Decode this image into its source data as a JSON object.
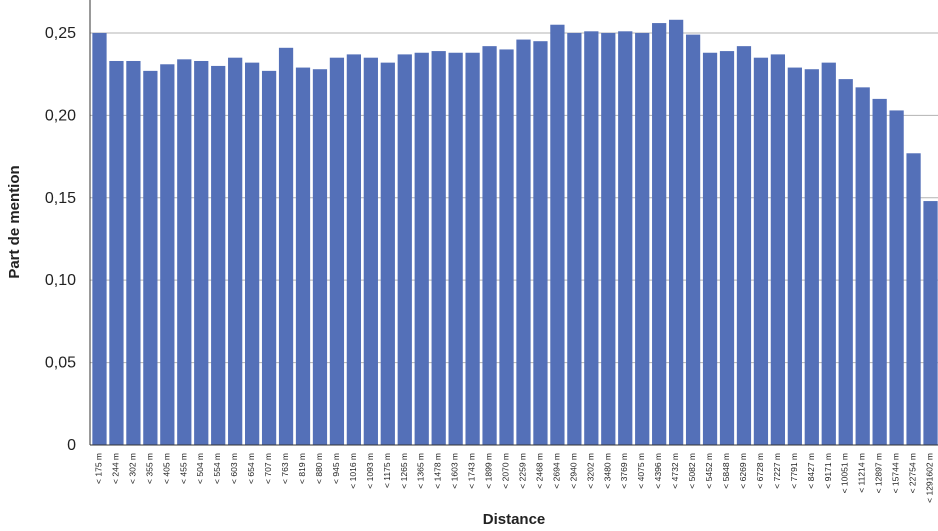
{
  "chart_data": {
    "type": "bar",
    "title": "",
    "xlabel": "Distance",
    "ylabel": "Part de mention",
    "ylim": [
      0,
      0.27
    ],
    "yticks": [
      0,
      0.05,
      0.1,
      0.15,
      0.2,
      0.25
    ],
    "ytick_labels": [
      "0",
      "0,05",
      "0,10",
      "0,15",
      "0,20",
      "0,25"
    ],
    "grid": "horizontal",
    "bar_color": "#5470b8",
    "grid_color": "#b3b3b3",
    "categories": [
      "< 175 m",
      "< 244 m",
      "< 302 m",
      "< 355 m",
      "< 405 m",
      "< 455 m",
      "< 504 m",
      "< 554 m",
      "< 603 m",
      "< 654 m",
      "< 707 m",
      "< 763 m",
      "< 819 m",
      "< 880 m",
      "< 945 m",
      "< 1016 m",
      "< 1093 m",
      "< 1175 m",
      "< 1265 m",
      "< 1365 m",
      "< 1478 m",
      "< 1603 m",
      "< 1743 m",
      "< 1899 m",
      "< 2070 m",
      "< 2259 m",
      "< 2468 m",
      "< 2694 m",
      "< 2940 m",
      "< 3202 m",
      "< 3480 m",
      "< 3769 m",
      "< 4075 m",
      "< 4396 m",
      "< 4732 m",
      "< 5082 m",
      "< 5452 m",
      "< 5848 m",
      "< 6269 m",
      "< 6728 m",
      "< 7227 m",
      "< 7791 m",
      "< 8427 m",
      "< 9171 m",
      "< 10051 m",
      "< 11214 m",
      "< 12897 m",
      "< 15744 m",
      "< 22754 m",
      "< 1291602 m"
    ],
    "values": [
      0.25,
      0.233,
      0.233,
      0.227,
      0.231,
      0.234,
      0.233,
      0.23,
      0.235,
      0.232,
      0.227,
      0.241,
      0.229,
      0.228,
      0.235,
      0.237,
      0.235,
      0.232,
      0.237,
      0.238,
      0.239,
      0.238,
      0.238,
      0.242,
      0.24,
      0.246,
      0.245,
      0.255,
      0.25,
      0.251,
      0.25,
      0.251,
      0.25,
      0.256,
      0.258,
      0.249,
      0.238,
      0.239,
      0.242,
      0.235,
      0.237,
      0.229,
      0.228,
      0.232,
      0.222,
      0.217,
      0.21,
      0.203,
      0.177,
      0.148
    ]
  }
}
